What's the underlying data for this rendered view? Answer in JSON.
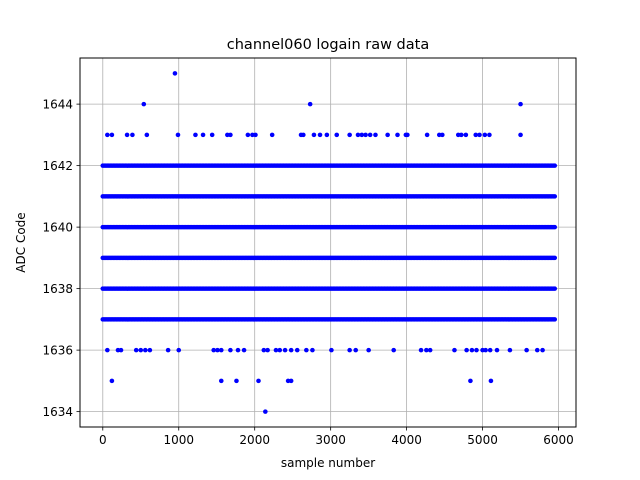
{
  "chart_data": {
    "type": "scatter",
    "title": "channel060 logain raw data",
    "xlabel": "sample number",
    "ylabel": "ADC Code",
    "xlim": [
      -300,
      6230
    ],
    "ylim": [
      1633.5,
      1645.5
    ],
    "xticks": [
      0,
      1000,
      2000,
      3000,
      4000,
      5000,
      6000
    ],
    "yticks": [
      1634,
      1636,
      1638,
      1640,
      1642,
      1644
    ],
    "grid": true,
    "marker_color": "#0000ff",
    "series": [
      {
        "dense_levels": [
          1637,
          1638,
          1639,
          1640,
          1641,
          1642
        ],
        "sample_range": [
          0,
          5950
        ],
        "sparse_points": {
          "1645": [
            950
          ],
          "1644": [
            540,
            2730,
            5500
          ],
          "1643": [
            60,
            120,
            320,
            390,
            580,
            990,
            1220,
            1320,
            1440,
            1640,
            1680,
            1910,
            1970,
            2010,
            2230,
            2610,
            2640,
            2780,
            2860,
            2950,
            3080,
            3250,
            3360,
            3410,
            3460,
            3520,
            3590,
            3750,
            3880,
            3990,
            4010,
            4270,
            4430,
            4470,
            4680,
            4720,
            4780,
            4910,
            4960,
            5030,
            5090,
            5500
          ],
          "1636": [
            60,
            200,
            240,
            440,
            500,
            560,
            620,
            860,
            1000,
            1460,
            1510,
            1560,
            1680,
            1780,
            1860,
            2120,
            2170,
            2280,
            2330,
            2400,
            2480,
            2560,
            2680,
            2760,
            3010,
            3250,
            3330,
            3500,
            3830,
            4190,
            4260,
            4310,
            4630,
            4790,
            4860,
            4920,
            5000,
            5040,
            5100,
            5190,
            5360,
            5580,
            5720,
            5790
          ],
          "1635": [
            120,
            1560,
            1760,
            2050,
            2440,
            2480,
            4840,
            5110
          ],
          "1634": [
            2140
          ]
        }
      }
    ]
  }
}
